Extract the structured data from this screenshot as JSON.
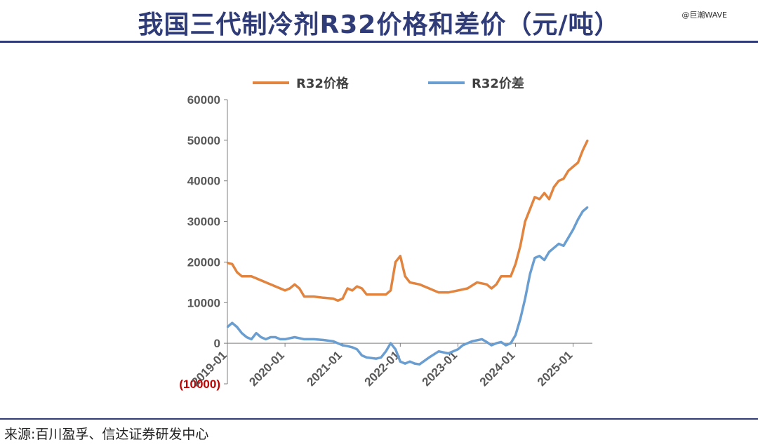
{
  "header": {
    "title": "我国三代制冷剂R32价格和差价（元/吨）",
    "watermark": "@巨潮WAVE"
  },
  "footer": {
    "source": "来源:百川盈孚、信达证券研发中心"
  },
  "colors": {
    "price": "#e0843f",
    "spread": "#6a9ed0",
    "title": "#2f3c78"
  },
  "chart_data": {
    "type": "line",
    "title": "我国三代制冷剂R32价格和差价（元/吨）",
    "xlabel": "",
    "ylabel": "",
    "ylim": [
      -10000,
      60000
    ],
    "xlim": [
      "2019-01",
      "2025-05"
    ],
    "yticks": [
      -10000,
      0,
      10000,
      20000,
      30000,
      40000,
      50000,
      60000
    ],
    "ytick_labels": [
      "(10000)",
      "0",
      "10000",
      "20000",
      "30000",
      "40000",
      "50000",
      "60000"
    ],
    "xticks": [
      "2019-01",
      "2020-01",
      "2021-01",
      "2022-01",
      "2023-01",
      "2024-01",
      "2025-01"
    ],
    "xtick_labels": [
      "2019-01",
      "2020-01",
      "2021-01",
      "2022-01",
      "2023-01",
      "2024-01",
      "2025-01"
    ],
    "legend": "top",
    "grid": false,
    "series": [
      {
        "name": "R32价格",
        "points": [
          [
            "2019-01",
            19800
          ],
          [
            "2019-02",
            19500
          ],
          [
            "2019-03",
            17500
          ],
          [
            "2019-04",
            16500
          ],
          [
            "2019-06",
            16500
          ],
          [
            "2019-07",
            16000
          ],
          [
            "2019-08",
            15500
          ],
          [
            "2019-09",
            15000
          ],
          [
            "2019-10",
            14500
          ],
          [
            "2019-11",
            14000
          ],
          [
            "2019-12",
            13500
          ],
          [
            "2020-01",
            13000
          ],
          [
            "2020-02",
            13500
          ],
          [
            "2020-03",
            14500
          ],
          [
            "2020-04",
            13500
          ],
          [
            "2020-05",
            11500
          ],
          [
            "2020-07",
            11500
          ],
          [
            "2020-09",
            11200
          ],
          [
            "2020-11",
            11000
          ],
          [
            "2020-12",
            10500
          ],
          [
            "2021-01",
            11000
          ],
          [
            "2021-02",
            13500
          ],
          [
            "2021-03",
            13000
          ],
          [
            "2021-04",
            14000
          ],
          [
            "2021-05",
            13500
          ],
          [
            "2021-06",
            12000
          ],
          [
            "2021-08",
            12000
          ],
          [
            "2021-10",
            12000
          ],
          [
            "2021-11",
            13000
          ],
          [
            "2021-12",
            20000
          ],
          [
            "2022-01",
            21500
          ],
          [
            "2022-02",
            16500
          ],
          [
            "2022-03",
            15000
          ],
          [
            "2022-05",
            14500
          ],
          [
            "2022-07",
            13500
          ],
          [
            "2022-09",
            12500
          ],
          [
            "2022-11",
            12500
          ],
          [
            "2023-01",
            13000
          ],
          [
            "2023-03",
            13500
          ],
          [
            "2023-05",
            15000
          ],
          [
            "2023-07",
            14500
          ],
          [
            "2023-08",
            13500
          ],
          [
            "2023-09",
            14500
          ],
          [
            "2023-10",
            16500
          ],
          [
            "2023-12",
            16500
          ],
          [
            "2024-01",
            19500
          ],
          [
            "2024-02",
            24000
          ],
          [
            "2024-03",
            30000
          ],
          [
            "2024-04",
            33000
          ],
          [
            "2024-05",
            36000
          ],
          [
            "2024-06",
            35500
          ],
          [
            "2024-07",
            37000
          ],
          [
            "2024-08",
            35500
          ],
          [
            "2024-09",
            38500
          ],
          [
            "2024-10",
            40000
          ],
          [
            "2024-11",
            40500
          ],
          [
            "2024-12",
            42500
          ],
          [
            "2025-01",
            43500
          ],
          [
            "2025-02",
            44500
          ],
          [
            "2025-03",
            47500
          ],
          [
            "2025-04",
            50000
          ]
        ]
      },
      {
        "name": "R32价差",
        "points": [
          [
            "2019-01",
            4000
          ],
          [
            "2019-02",
            5000
          ],
          [
            "2019-03",
            4000
          ],
          [
            "2019-04",
            2500
          ],
          [
            "2019-05",
            1500
          ],
          [
            "2019-06",
            1000
          ],
          [
            "2019-07",
            2500
          ],
          [
            "2019-08",
            1500
          ],
          [
            "2019-09",
            1000
          ],
          [
            "2019-10",
            1500
          ],
          [
            "2019-11",
            1500
          ],
          [
            "2019-12",
            1000
          ],
          [
            "2020-01",
            1000
          ],
          [
            "2020-03",
            1500
          ],
          [
            "2020-05",
            1000
          ],
          [
            "2020-07",
            1000
          ],
          [
            "2020-09",
            800
          ],
          [
            "2020-11",
            500
          ],
          [
            "2021-01",
            -500
          ],
          [
            "2021-02",
            -700
          ],
          [
            "2021-03",
            -1000
          ],
          [
            "2021-04",
            -1500
          ],
          [
            "2021-05",
            -3000
          ],
          [
            "2021-06",
            -3500
          ],
          [
            "2021-08",
            -3800
          ],
          [
            "2021-09",
            -3500
          ],
          [
            "2021-10",
            -2000
          ],
          [
            "2021-11",
            0
          ],
          [
            "2021-12",
            -1500
          ],
          [
            "2022-01",
            -4500
          ],
          [
            "2022-02",
            -5000
          ],
          [
            "2022-03",
            -4500
          ],
          [
            "2022-04",
            -5000
          ],
          [
            "2022-05",
            -5200
          ],
          [
            "2022-07",
            -3500
          ],
          [
            "2022-09",
            -2000
          ],
          [
            "2022-11",
            -2500
          ],
          [
            "2023-01",
            -1500
          ],
          [
            "2023-02",
            -500
          ],
          [
            "2023-04",
            500
          ],
          [
            "2023-06",
            1000
          ],
          [
            "2023-07",
            300
          ],
          [
            "2023-08",
            -500
          ],
          [
            "2023-09",
            0
          ],
          [
            "2023-10",
            300
          ],
          [
            "2023-11",
            -500
          ],
          [
            "2023-12",
            0
          ],
          [
            "2024-01",
            2000
          ],
          [
            "2024-02",
            6000
          ],
          [
            "2024-03",
            11000
          ],
          [
            "2024-04",
            17000
          ],
          [
            "2024-05",
            21000
          ],
          [
            "2024-06",
            21500
          ],
          [
            "2024-07",
            20500
          ],
          [
            "2024-08",
            22500
          ],
          [
            "2024-09",
            23500
          ],
          [
            "2024-10",
            24500
          ],
          [
            "2024-11",
            24000
          ],
          [
            "2024-12",
            26000
          ],
          [
            "2025-01",
            28000
          ],
          [
            "2025-02",
            30500
          ],
          [
            "2025-03",
            32500
          ],
          [
            "2025-04",
            33500
          ]
        ]
      }
    ]
  }
}
